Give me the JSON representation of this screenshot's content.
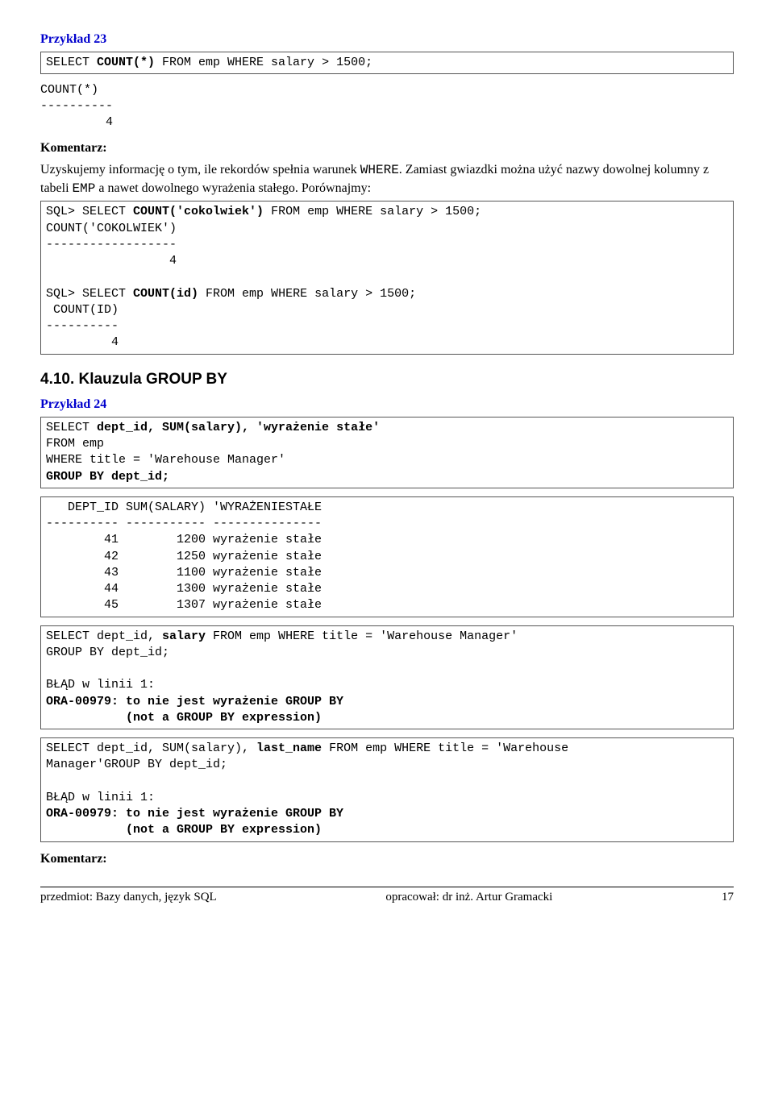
{
  "ex23": {
    "title": "Przykład 23",
    "code1_plain": "SELECT ",
    "code1_bold": "COUNT(*)",
    "code1_rest": " FROM emp WHERE salary > 1500;",
    "result1": "COUNT(*)\n----------\n         4",
    "komentarz_label": "Komentarz:",
    "body_pre": "Uzyskujemy informację o tym, ile rekordów spełnia warunek ",
    "body_code": "WHERE",
    "body_mid": ". Zamiast gwiazdki można użyć nazwy dowolnej kolumny z tabeli ",
    "body_code2": "EMP",
    "body_post": " a nawet dowolnego wyrażenia stałego. Porównajmy:",
    "box2_l1a": "SQL> SELECT ",
    "box2_l1b": "COUNT('cokolwiek')",
    "box2_l1c": " FROM emp WHERE salary > 1500;",
    "box2_res1": "\nCOUNT('COKOLWIEK')\n------------------\n                 4\n",
    "box2_l2a": "SQL> SELECT ",
    "box2_l2b": "COUNT(id)",
    "box2_l2c": " FROM emp WHERE salary > 1500;",
    "box2_res2": "\n COUNT(ID)\n----------\n         4"
  },
  "section410": {
    "title": "4.10. Klauzula GROUP BY"
  },
  "ex24": {
    "title": "Przykład 24",
    "code_l1a": "SELECT ",
    "code_l1b": "dept_id, SUM(salary), 'wyrażenie stałe'",
    "code_l2": "FROM emp",
    "code_l3": "WHERE title = 'Warehouse Manager'",
    "code_l4": "GROUP BY dept_id;",
    "result_header": "   DEPT_ID SUM(SALARY) 'WYRAŻENIESTAŁE",
    "result_divider": "---------- ----------- ---------------",
    "result_rows": [
      "        41        1200 wyrażenie stałe",
      "        42        1250 wyrażenie stałe",
      "        43        1100 wyrażenie stałe",
      "        44        1300 wyrażenie stałe",
      "        45        1307 wyrażenie stałe"
    ],
    "err1_l1a": "SELECT dept_id, ",
    "err1_l1b": "salary",
    "err1_l1c": " FROM emp WHERE title = 'Warehouse Manager'",
    "err1_l2": "GROUP BY dept_id;",
    "err1_l3": "BŁĄD w linii 1:",
    "err1_l4": "ORA-00979: to nie jest wyrażenie GROUP BY",
    "err1_l5": "           (not a GROUP BY expression)",
    "err2_l1a": "SELECT dept_id, SUM(salary), ",
    "err2_l1b": "last_name",
    "err2_l1c": " FROM emp WHERE title = 'Warehouse",
    "err2_l2": "Manager'GROUP BY dept_id;",
    "err2_l3": "BŁĄD w linii 1:",
    "err2_l4": "ORA-00979: to nie jest wyrażenie GROUP BY",
    "err2_l5": "           (not a GROUP BY expression)",
    "komentarz_label": "Komentarz:"
  },
  "footer": {
    "left": "przedmiot: Bazy danych, język SQL",
    "mid": "opracował: dr inż. Artur Gramacki",
    "page": "17"
  }
}
